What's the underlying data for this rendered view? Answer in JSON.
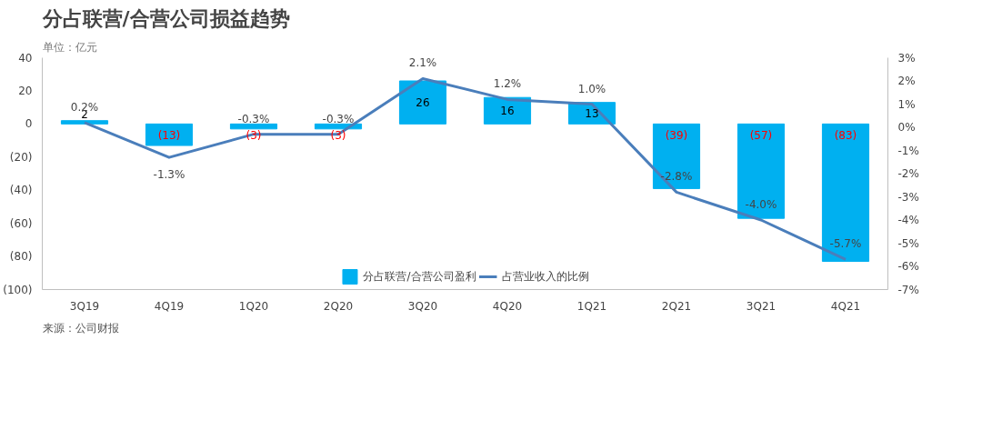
{
  "chart_data": {
    "type": "bar",
    "title": "分占联营/合营公司损益趋势",
    "subtitle": "单位：亿元",
    "annotations": [
      "来源：公司财报"
    ],
    "categories": [
      "3Q19",
      "4Q19",
      "1Q20",
      "2Q20",
      "3Q20",
      "4Q20",
      "1Q21",
      "2Q21",
      "3Q21",
      "4Q21"
    ],
    "series": [
      {
        "name": "分占联营/合营公司盈利",
        "color": "#00b0f0",
        "values": [
          2,
          -13,
          -3,
          -3,
          26,
          16,
          13,
          -39,
          -57,
          -83
        ],
        "value_labels": [
          "2",
          "(13)",
          "(3)",
          "(3)",
          "26",
          "16",
          "13",
          "(39)",
          "(57)",
          "(83)"
        ]
      },
      {
        "name": "占营业收入的比例",
        "type": "line",
        "axis": "y2",
        "color": "#4a7ebb",
        "values": [
          0.2,
          -1.3,
          -0.3,
          -0.3,
          2.1,
          1.2,
          1.0,
          -2.8,
          -4.0,
          -5.7
        ],
        "value_labels": [
          "0.2%",
          "-1.3%",
          "-0.3%",
          "-0.3%",
          "2.1%",
          "1.2%",
          "1.0%",
          "-2.8%",
          "-4.0%",
          "-5.7%"
        ]
      }
    ],
    "ylim": [
      -100,
      40
    ],
    "yticks": [
      40,
      20,
      0,
      {
        "value": -20,
        "label": "(20)"
      },
      {
        "value": -40,
        "label": "(40)"
      },
      {
        "value": -60,
        "label": "(60)"
      },
      {
        "value": -80,
        "label": "(80)"
      },
      {
        "value": -100,
        "label": "(100)"
      }
    ],
    "y2lim": [
      -7,
      3
    ],
    "y2ticks": [
      {
        "value": 3,
        "label": "3%"
      },
      {
        "value": 2,
        "label": "2%"
      },
      {
        "value": 1,
        "label": "1%"
      },
      {
        "value": 0,
        "label": "0%"
      },
      {
        "value": -1,
        "label": "-1%"
      },
      {
        "value": -2,
        "label": "-2%"
      },
      {
        "value": -3,
        "label": "-3%"
      },
      {
        "value": -4,
        "label": "-4%"
      },
      {
        "value": -5,
        "label": "-5%"
      },
      {
        "value": -6,
        "label": "-6%"
      },
      {
        "value": -7,
        "label": "-7%"
      }
    ],
    "grid": false,
    "legend": "bottom",
    "marker": "none",
    "line_style": "solid"
  }
}
